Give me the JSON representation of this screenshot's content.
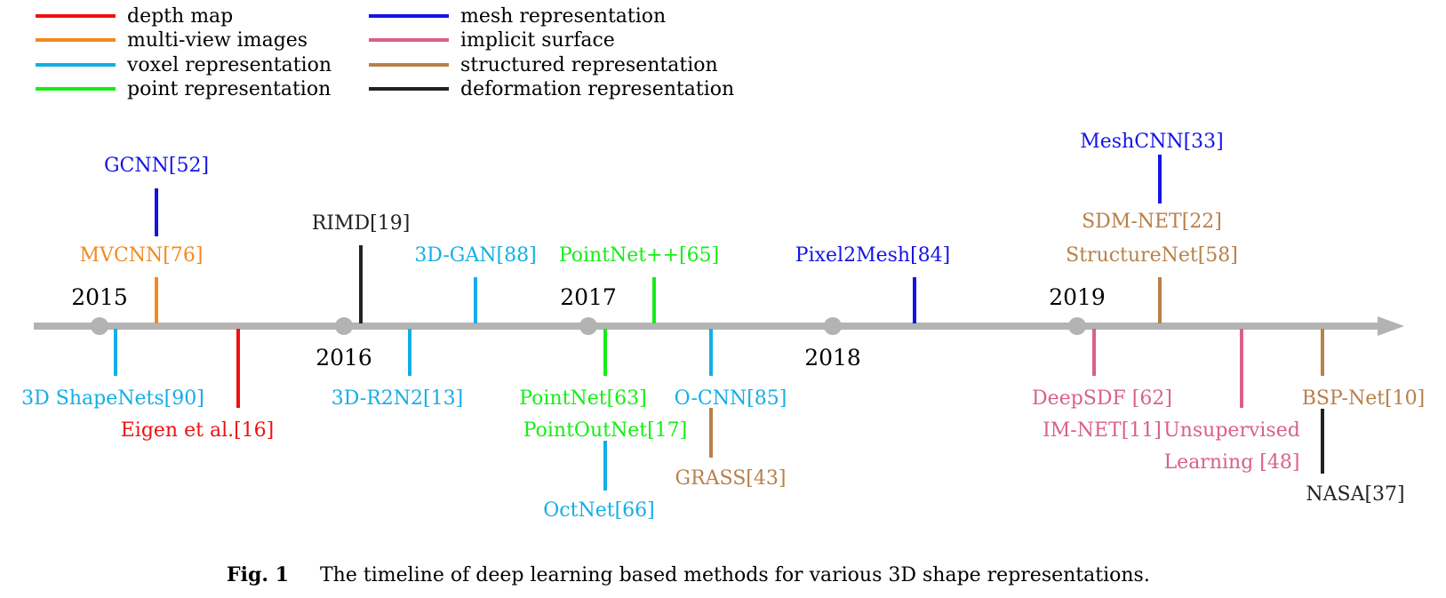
{
  "legend": [
    {
      "name": "depth map",
      "color": "#f01010"
    },
    {
      "name": "multi-view images",
      "color": "#f28a1e"
    },
    {
      "name": "voxel representation",
      "color": "#14aee6"
    },
    {
      "name": "point representation",
      "color": "#14ee14"
    },
    {
      "name": "mesh representation",
      "color": "#1414e6"
    },
    {
      "name": "implicit surface",
      "color": "#d9608c"
    },
    {
      "name": "structured representation",
      "color": "#b8804a"
    },
    {
      "name": "deformation representation",
      "color": "#222222"
    }
  ],
  "years": [
    "2015",
    "2016",
    "2017",
    "2018",
    "2019"
  ],
  "methods": [
    {
      "id": "gcnn",
      "label": "GCNN[52]",
      "category": "mesh representation"
    },
    {
      "id": "mvcnn",
      "label": "MVCNN[76]",
      "category": "multi-view images"
    },
    {
      "id": "3d-shapenets",
      "label": "3D ShapeNets[90]",
      "category": "voxel representation"
    },
    {
      "id": "eigen",
      "label": "Eigen et al.[16]",
      "category": "depth map"
    },
    {
      "id": "rimd",
      "label": "RIMD[19]",
      "category": "deformation representation"
    },
    {
      "id": "3d-r2n2",
      "label": "3D-R2N2[13]",
      "category": "voxel representation"
    },
    {
      "id": "3d-gan",
      "label": "3D-GAN[88]",
      "category": "voxel representation"
    },
    {
      "id": "pointnet",
      "label": "PointNet[63]",
      "category": "point representation"
    },
    {
      "id": "pointoutnet",
      "label": "PointOutNet[17]",
      "category": "point representation"
    },
    {
      "id": "octnet",
      "label": "OctNet[66]",
      "category": "voxel representation"
    },
    {
      "id": "pointnet-pp",
      "label": "PointNet++[65]",
      "category": "point representation"
    },
    {
      "id": "o-cnn",
      "label": "O-CNN[85]",
      "category": "voxel representation"
    },
    {
      "id": "grass",
      "label": "GRASS[43]",
      "category": "structured representation"
    },
    {
      "id": "pixel2mesh",
      "label": "Pixel2Mesh[84]",
      "category": "mesh representation"
    },
    {
      "id": "meshcnn",
      "label": "MeshCNN[33]",
      "category": "mesh representation"
    },
    {
      "id": "sdm-net",
      "label": "SDM-NET[22]",
      "category": "structured representation"
    },
    {
      "id": "structurenet",
      "label": "StructureNet[58]",
      "category": "structured representation"
    },
    {
      "id": "deepsdf",
      "label": "DeepSDF [62]",
      "category": "implicit surface"
    },
    {
      "id": "im-net",
      "label": "IM-NET[11]",
      "category": "implicit surface"
    },
    {
      "id": "unsupervised-1",
      "label": "Unsupervised",
      "category": "implicit surface"
    },
    {
      "id": "unsupervised-2",
      "label": "Learning [48]",
      "category": "implicit surface"
    },
    {
      "id": "bsp-net",
      "label": "BSP-Net[10]",
      "category": "structured representation"
    },
    {
      "id": "nasa",
      "label": "NASA[37]",
      "category": "deformation representation"
    }
  ],
  "caption": {
    "label": "Fig. 1",
    "text": "The timeline of deep learning based methods for various 3D shape representations."
  }
}
